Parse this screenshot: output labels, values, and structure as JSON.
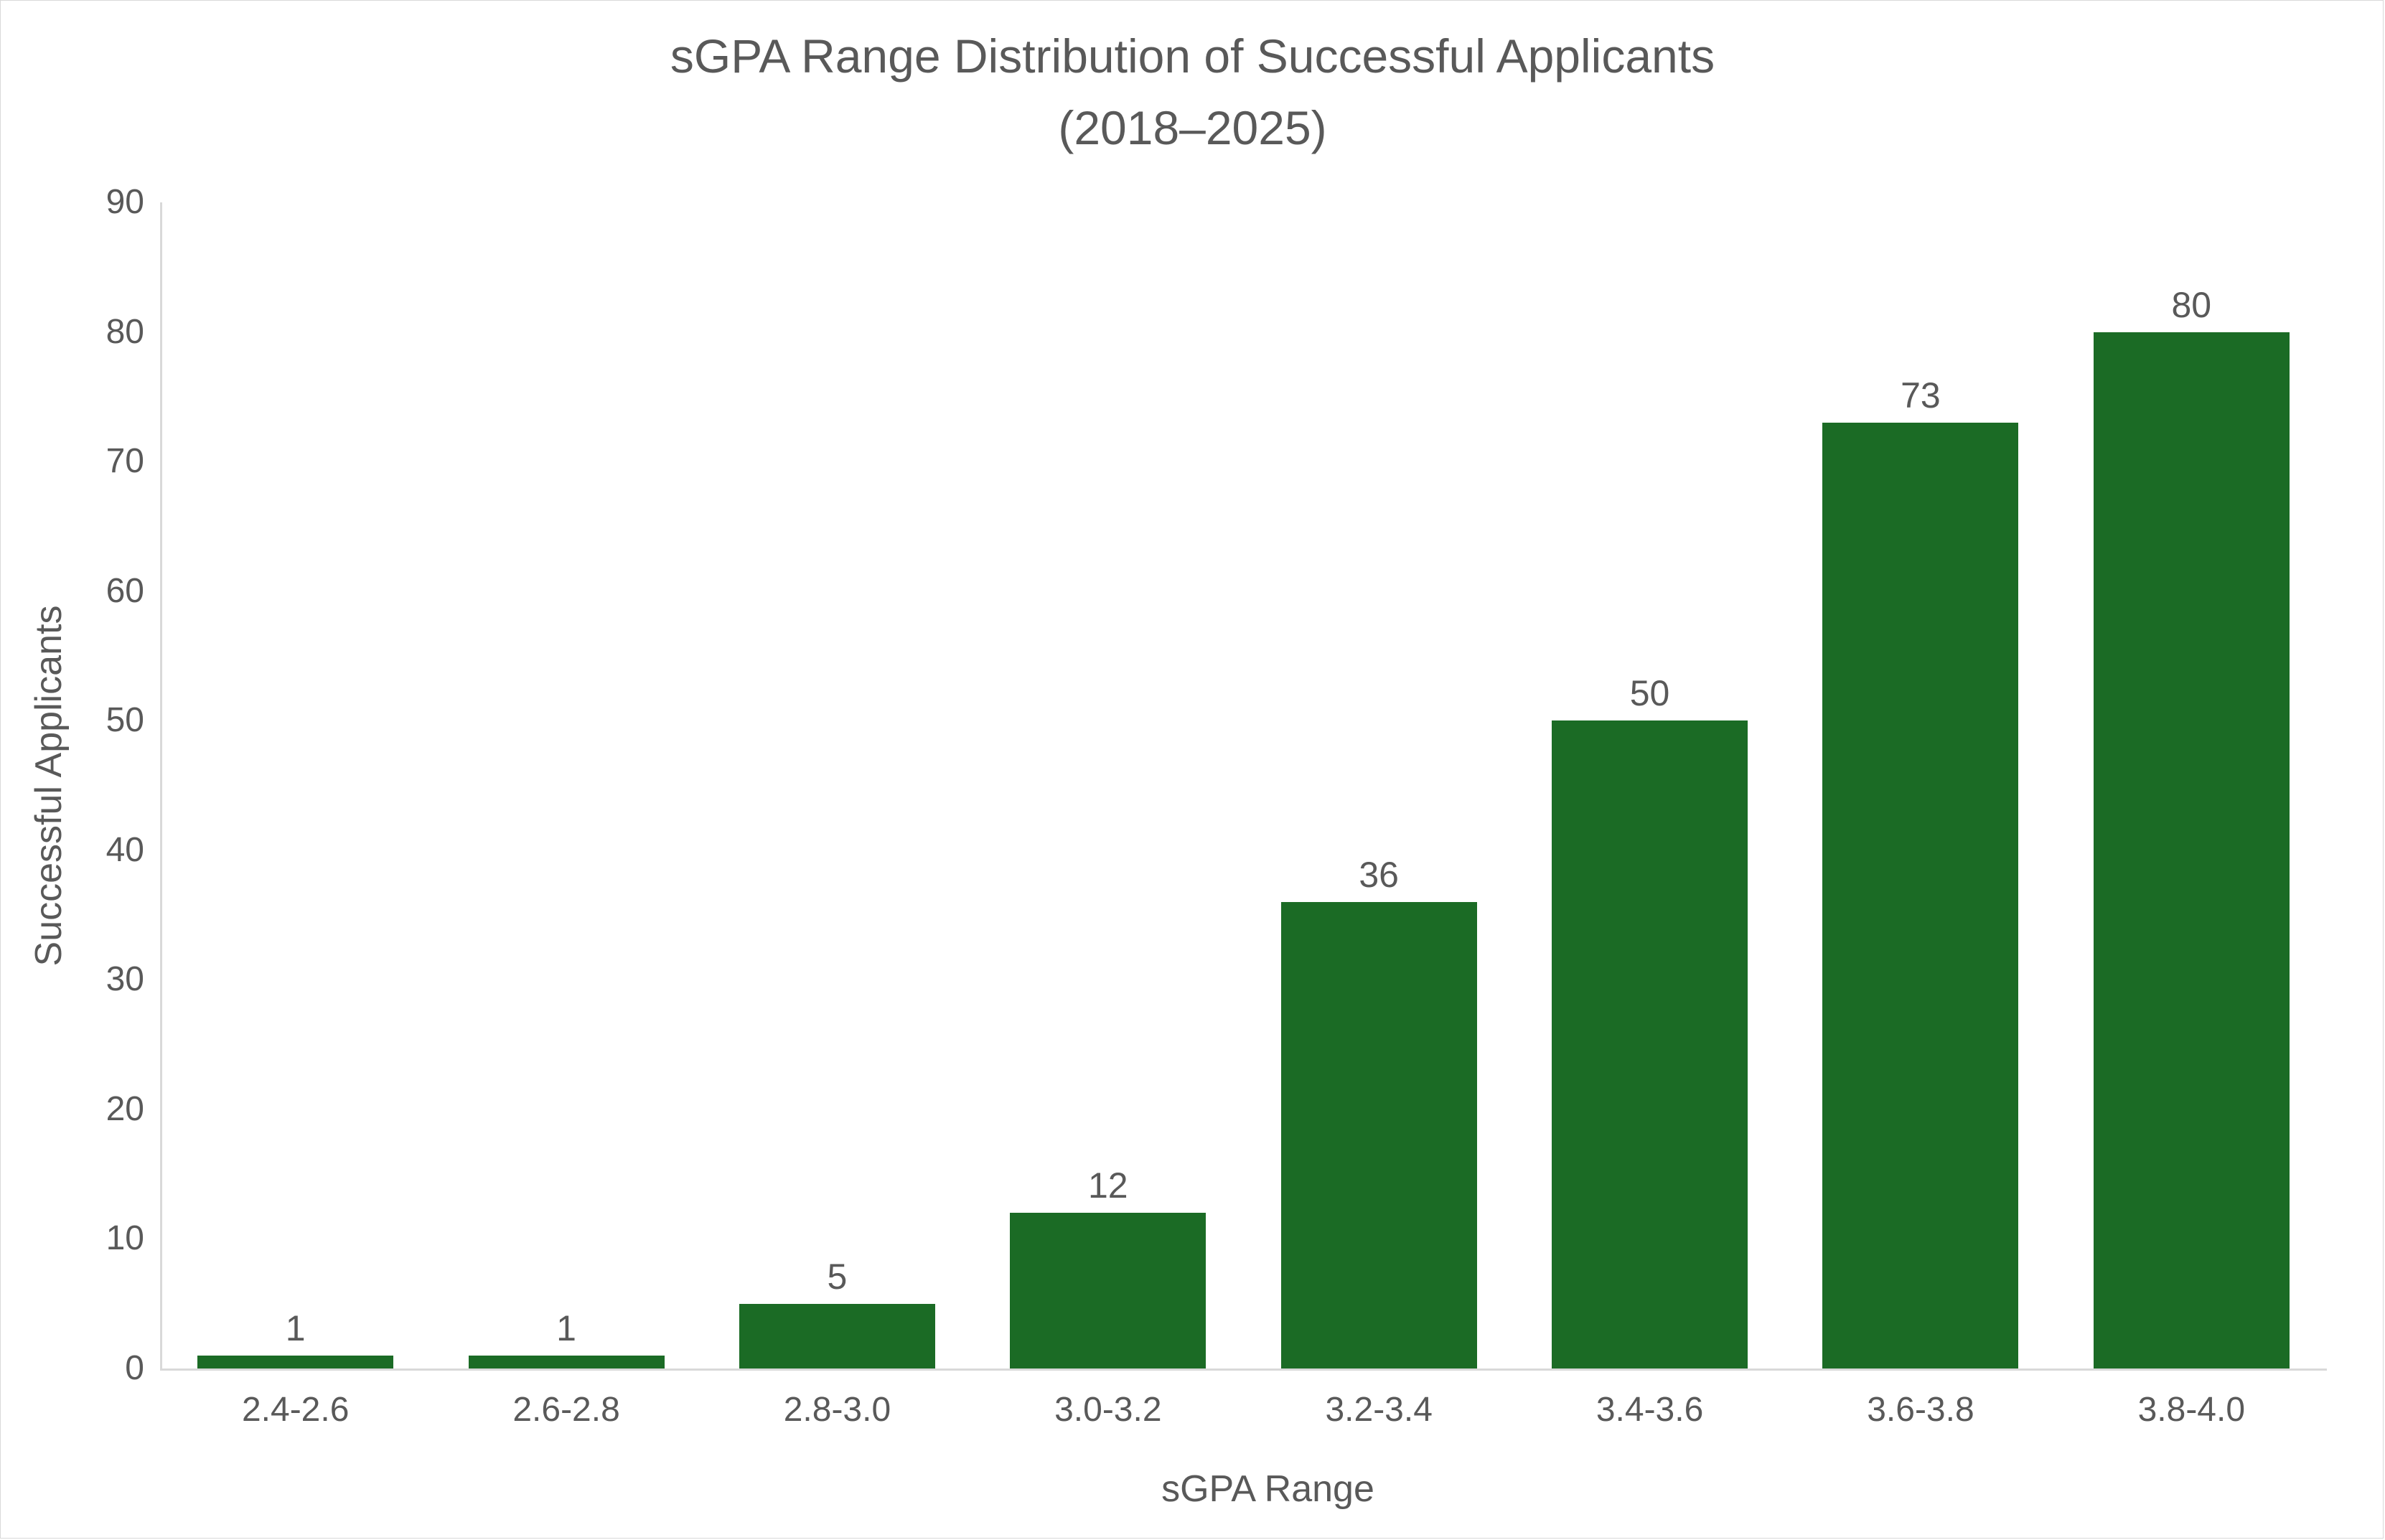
{
  "chart_data": {
    "type": "bar",
    "title": "sGPA Range Distribution of Successful Applicants",
    "subtitle": "(2018–2025)",
    "xlabel": "sGPA Range",
    "ylabel": "Successful Applicants",
    "categories": [
      "2.4-2.6",
      "2.6-2.8",
      "2.8-3.0",
      "3.0-3.2",
      "3.2-3.4",
      "3.4-3.6",
      "3.6-3.8",
      "3.8-4.0"
    ],
    "values": [
      1,
      1,
      5,
      12,
      36,
      50,
      73,
      80
    ],
    "data_labels": [
      "1",
      "1",
      "5",
      "12",
      "36",
      "50",
      "73",
      "80"
    ],
    "ylim": [
      0,
      90
    ],
    "yticks": [
      "0",
      "10",
      "20",
      "30",
      "40",
      "50",
      "60",
      "70",
      "80",
      "90"
    ],
    "grid": false,
    "legend": null,
    "colors": {
      "bar": "#1B6B25",
      "text": "#595959",
      "axis": "#D9D9D9"
    }
  }
}
